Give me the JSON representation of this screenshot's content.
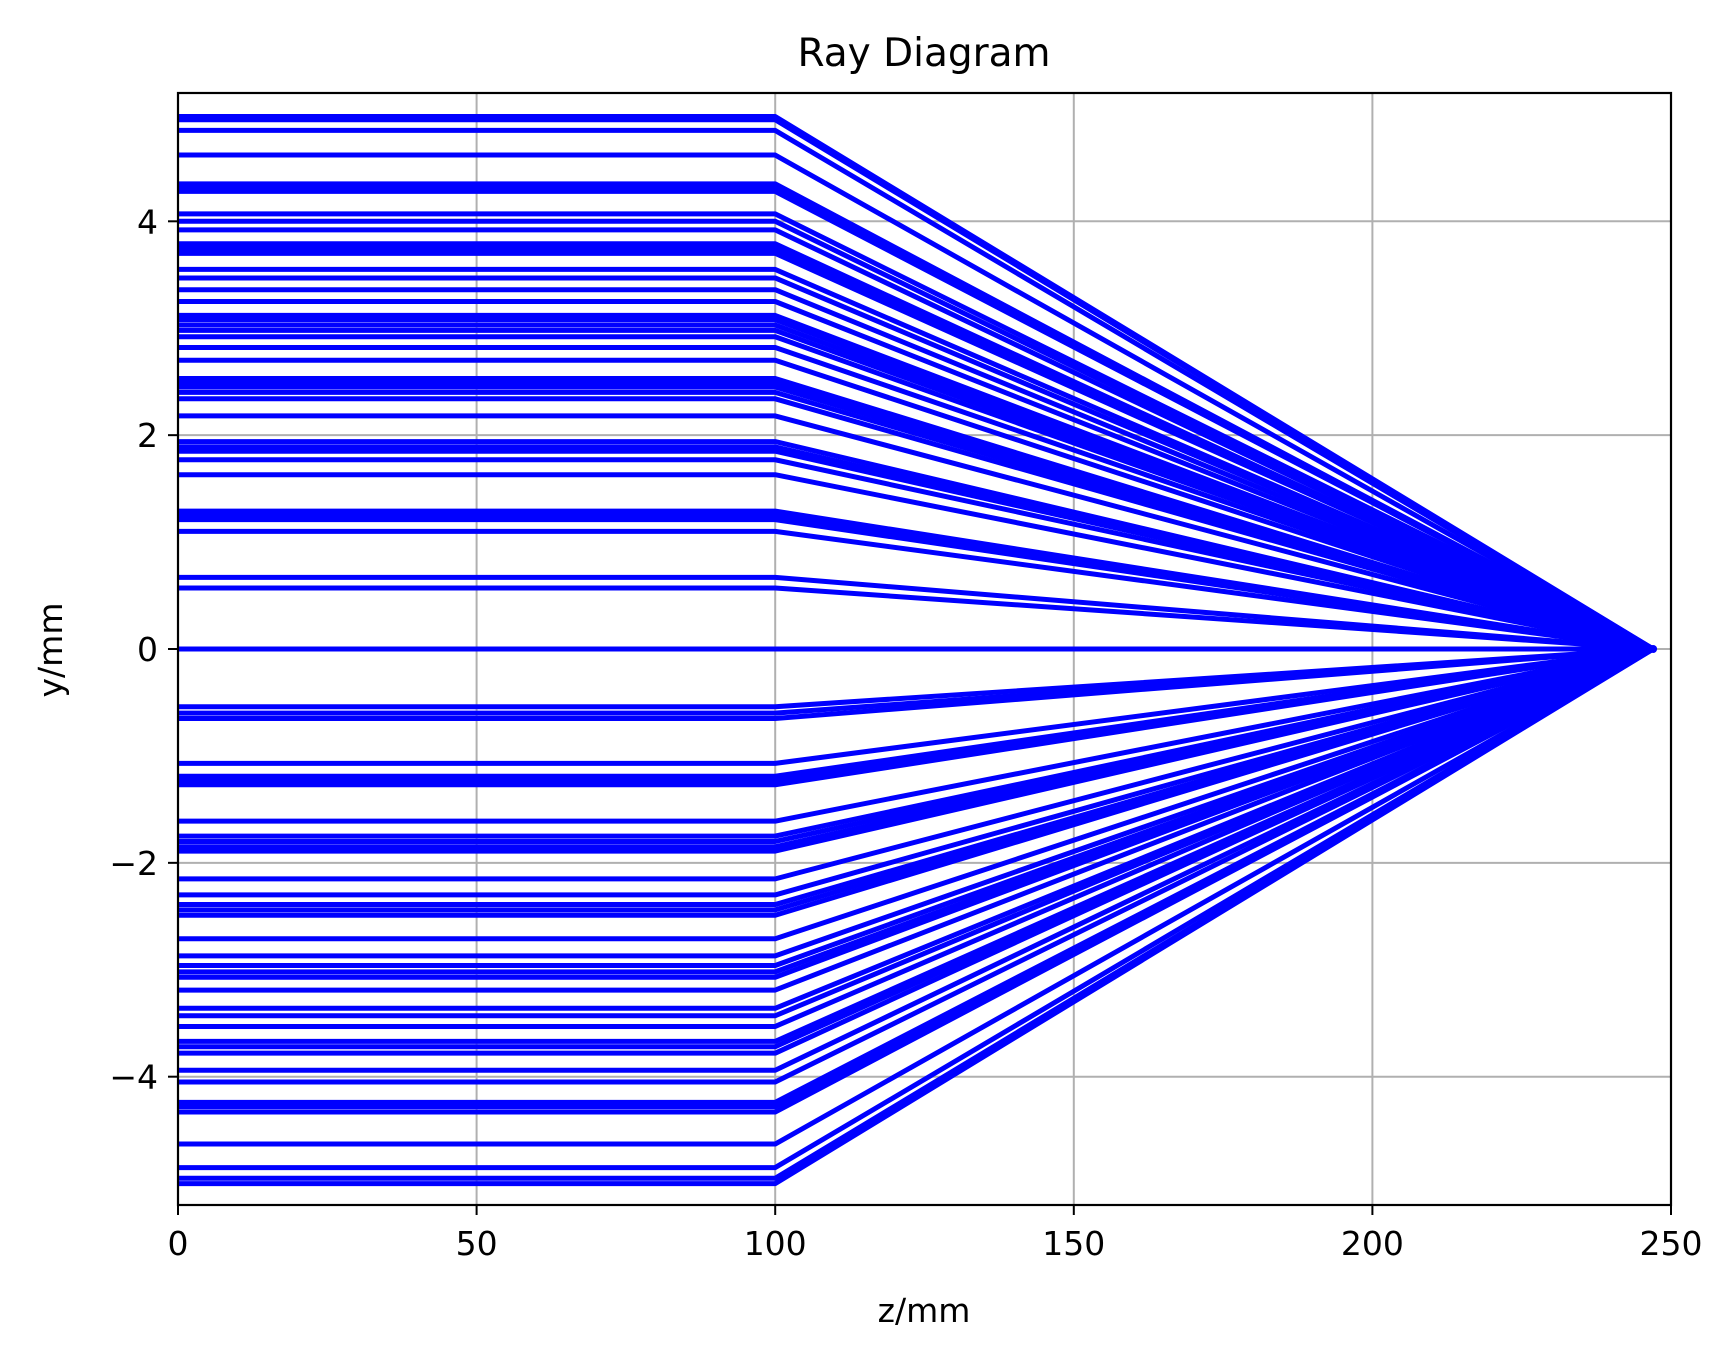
{
  "chart_data": {
    "type": "line",
    "title": "Ray Diagram",
    "xlabel": "z/mm",
    "ylabel": "y/mm",
    "xlim": [
      0,
      250
    ],
    "ylim": [
      -5.2,
      5.2
    ],
    "xticks": [
      0,
      50,
      100,
      150,
      200,
      250
    ],
    "yticks": [
      -4,
      -2,
      0,
      2,
      4
    ],
    "xtick_labels": [
      "0",
      "50",
      "100",
      "150",
      "200",
      "250"
    ],
    "ytick_labels": [
      "−4",
      "−2",
      "0",
      "2",
      "4"
    ],
    "grid": true,
    "legend": "none",
    "line_color": "#0000ff",
    "lens_z": 100,
    "focus": [
      247,
      0
    ],
    "ray_z": [
      0,
      100,
      247
    ],
    "ray_heights": [
      4.98,
      4.95,
      4.85,
      4.62,
      4.35,
      4.32,
      4.28,
      4.07,
      4.0,
      3.92,
      3.79,
      3.76,
      3.73,
      3.7,
      3.55,
      3.47,
      3.36,
      3.25,
      3.12,
      3.08,
      3.03,
      2.98,
      2.92,
      2.82,
      2.7,
      2.53,
      2.49,
      2.45,
      2.4,
      2.34,
      2.18,
      1.94,
      1.89,
      1.85,
      1.77,
      1.63,
      1.29,
      1.25,
      1.21,
      1.1,
      0.67,
      0.57,
      0.0,
      -0.54,
      -0.6,
      -0.65,
      -1.07,
      -1.19,
      -1.23,
      -1.27,
      -1.61,
      -1.75,
      -1.8,
      -1.85,
      -1.89,
      -2.15,
      -2.3,
      -2.39,
      -2.44,
      -2.49,
      -2.71,
      -2.87,
      -2.96,
      -3.02,
      -3.07,
      -3.19,
      -3.36,
      -3.43,
      -3.53,
      -3.67,
      -3.72,
      -3.78,
      -3.94,
      -4.05,
      -4.24,
      -4.28,
      -4.33,
      -4.63,
      -4.85,
      -4.95,
      -5.0
    ]
  }
}
